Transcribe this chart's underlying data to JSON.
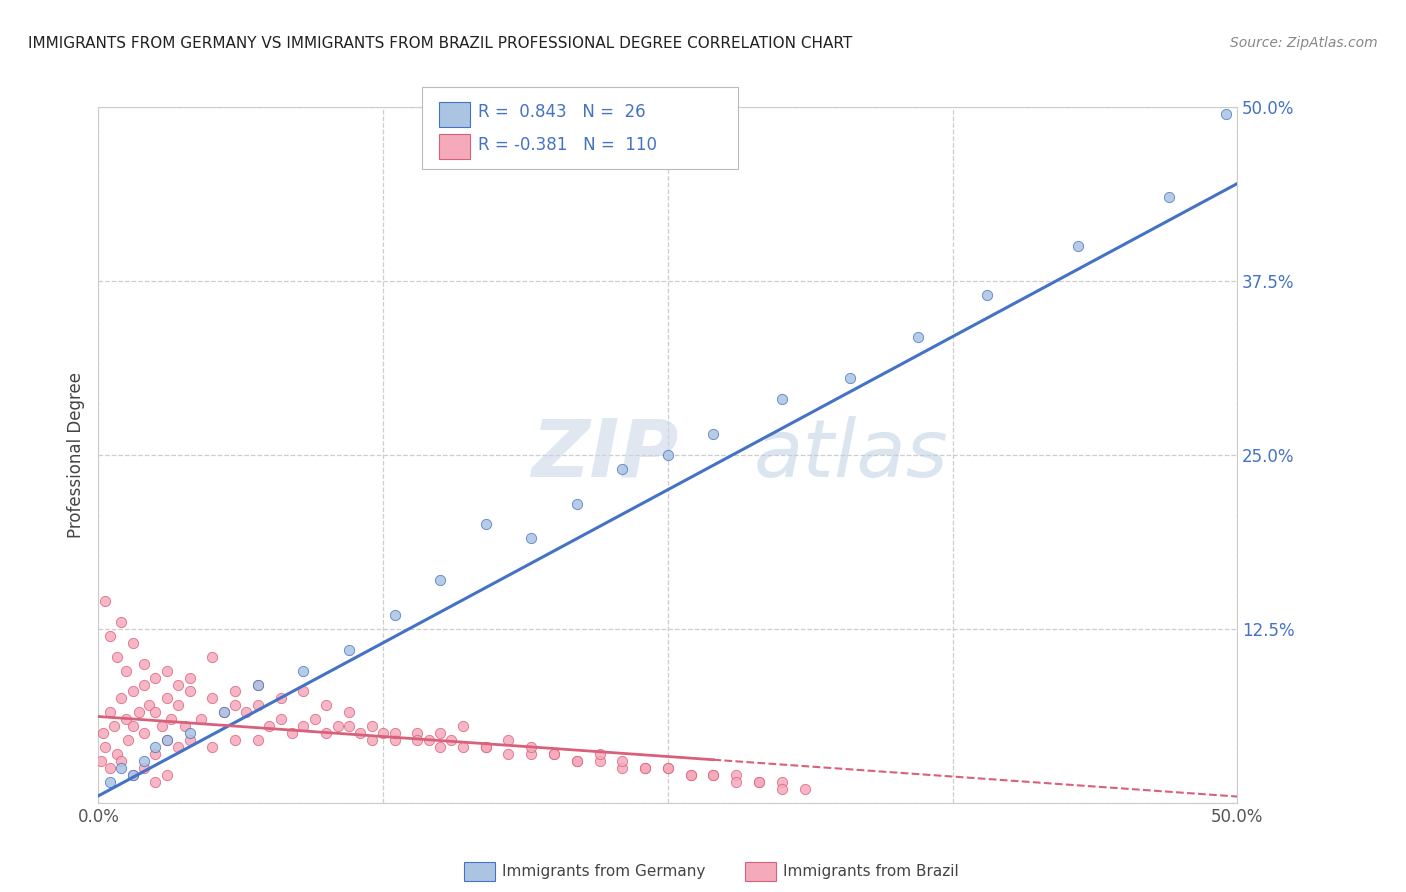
{
  "title": "IMMIGRANTS FROM GERMANY VS IMMIGRANTS FROM BRAZIL PROFESSIONAL DEGREE CORRELATION CHART",
  "source": "Source: ZipAtlas.com",
  "ylabel": "Professional Degree",
  "legend_label_germany": "Immigrants from Germany",
  "legend_label_brazil": "Immigrants from Brazil",
  "R_germany": 0.843,
  "N_germany": 26,
  "R_brazil": -0.381,
  "N_brazil": 110,
  "xlim": [
    0.0,
    50.0
  ],
  "ylim": [
    0.0,
    50.0
  ],
  "xticks": [
    0.0,
    12.5,
    25.0,
    37.5,
    50.0
  ],
  "yticks": [
    0.0,
    12.5,
    25.0,
    37.5,
    50.0
  ],
  "color_germany": "#aac4e2",
  "color_brazil": "#f5aabb",
  "line_color_germany": "#4472c4",
  "line_color_brazil": "#d9607a",
  "watermark_zip": "ZIP",
  "watermark_atlas": "atlas",
  "background_color": "#ffffff",
  "slope_germany": 0.88,
  "intercept_germany": 0.5,
  "slope_brazil": -0.115,
  "intercept_brazil": 6.2,
  "brazil_dash_start_x": 27.0,
  "germany_x": [
    0.5,
    1.0,
    1.5,
    2.0,
    2.5,
    3.0,
    4.0,
    5.5,
    7.0,
    9.0,
    11.0,
    13.0,
    15.0,
    17.0,
    19.0,
    21.0,
    23.0,
    25.0,
    27.0,
    30.0,
    33.0,
    36.0,
    39.0,
    43.0,
    47.0,
    49.5
  ],
  "germany_y": [
    1.5,
    2.5,
    2.0,
    3.0,
    4.0,
    4.5,
    5.0,
    6.5,
    8.5,
    9.5,
    11.0,
    13.5,
    16.0,
    20.0,
    19.0,
    21.5,
    24.0,
    25.0,
    26.5,
    29.0,
    30.5,
    33.5,
    36.5,
    40.0,
    43.5,
    49.5
  ],
  "brazil_x": [
    0.1,
    0.2,
    0.3,
    0.5,
    0.5,
    0.7,
    0.8,
    1.0,
    1.0,
    1.2,
    1.3,
    1.5,
    1.5,
    1.5,
    1.8,
    2.0,
    2.0,
    2.0,
    2.2,
    2.5,
    2.5,
    2.5,
    2.8,
    3.0,
    3.0,
    3.0,
    3.2,
    3.5,
    3.5,
    3.8,
    4.0,
    4.0,
    4.5,
    5.0,
    5.0,
    5.5,
    6.0,
    6.0,
    6.5,
    7.0,
    7.0,
    7.5,
    8.0,
    8.5,
    9.0,
    9.5,
    10.0,
    10.5,
    11.0,
    11.5,
    12.0,
    12.5,
    13.0,
    14.0,
    14.5,
    15.0,
    15.5,
    16.0,
    17.0,
    18.0,
    19.0,
    20.0,
    21.0,
    22.0,
    23.0,
    24.0,
    25.0,
    26.0,
    27.0,
    28.0,
    29.0,
    30.0,
    0.3,
    0.5,
    0.8,
    1.0,
    1.2,
    1.5,
    2.0,
    2.5,
    3.0,
    3.5,
    4.0,
    5.0,
    6.0,
    7.0,
    8.0,
    9.0,
    10.0,
    11.0,
    12.0,
    13.0,
    14.0,
    15.0,
    16.0,
    17.0,
    18.0,
    19.0,
    20.0,
    21.0,
    22.0,
    23.0,
    24.0,
    25.0,
    26.0,
    27.0,
    28.0,
    29.0,
    30.0,
    31.0
  ],
  "brazil_y": [
    3.0,
    5.0,
    4.0,
    6.5,
    2.5,
    5.5,
    3.5,
    7.5,
    3.0,
    6.0,
    4.5,
    8.0,
    5.5,
    2.0,
    6.5,
    8.5,
    5.0,
    2.5,
    7.0,
    6.5,
    3.5,
    1.5,
    5.5,
    7.5,
    4.5,
    2.0,
    6.0,
    7.0,
    4.0,
    5.5,
    8.0,
    4.5,
    6.0,
    7.5,
    4.0,
    6.5,
    7.0,
    4.5,
    6.5,
    7.0,
    4.5,
    5.5,
    6.0,
    5.0,
    5.5,
    6.0,
    5.0,
    5.5,
    5.5,
    5.0,
    4.5,
    5.0,
    4.5,
    5.0,
    4.5,
    4.0,
    4.5,
    4.0,
    4.0,
    3.5,
    3.5,
    3.5,
    3.0,
    3.0,
    2.5,
    2.5,
    2.5,
    2.0,
    2.0,
    2.0,
    1.5,
    1.5,
    14.5,
    12.0,
    10.5,
    13.0,
    9.5,
    11.5,
    10.0,
    9.0,
    9.5,
    8.5,
    9.0,
    10.5,
    8.0,
    8.5,
    7.5,
    8.0,
    7.0,
    6.5,
    5.5,
    5.0,
    4.5,
    5.0,
    5.5,
    4.0,
    4.5,
    4.0,
    3.5,
    3.0,
    3.5,
    3.0,
    2.5,
    2.5,
    2.0,
    2.0,
    1.5,
    1.5,
    1.0,
    1.0
  ]
}
